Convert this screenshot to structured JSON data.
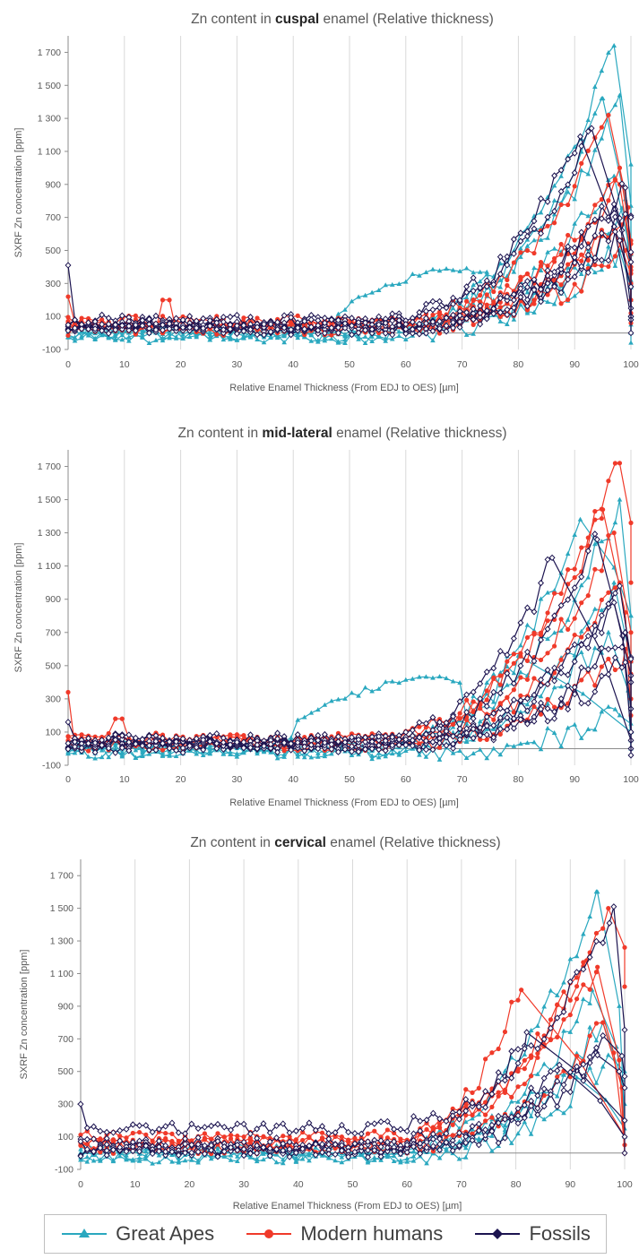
{
  "colors": {
    "great_apes": "#2aa8bf",
    "modern_humans": "#f03a2a",
    "fossils": "#1c1450",
    "grid": "#d9d9d9",
    "axis": "#8c8c8c"
  },
  "legend": [
    {
      "name": "Great Apes",
      "color": "#2aa8bf",
      "marker": "triangle"
    },
    {
      "name": "Modern humans",
      "color": "#f03a2a",
      "marker": "circle"
    },
    {
      "name": "Fossils",
      "color": "#1c1450",
      "marker": "diamond"
    }
  ],
  "chart_data": [
    {
      "type": "line",
      "title_prefix": "Zn content in ",
      "title_bold": "cuspal",
      "title_suffix": " enamel (Relative thickness)",
      "xlabel": "Relative Enamel Thickness (From EDJ to OES) [µm]",
      "ylabel": "SXRF Zn concentration [ppm]",
      "xlim": [
        0,
        100
      ],
      "ylim": [
        -100,
        1800
      ],
      "xticks": [
        0,
        10,
        20,
        30,
        40,
        50,
        60,
        70,
        80,
        90,
        100
      ],
      "yticks": [
        -100,
        100,
        300,
        500,
        700,
        900,
        1100,
        1300,
        1500,
        1700
      ],
      "ytick_labels": [
        "-100",
        "100",
        "300",
        "500",
        "700",
        "900",
        "1 100",
        "1 300",
        "1 500",
        "1 700"
      ],
      "grid": "vertical",
      "series": [
        {
          "group": "Great Apes",
          "peak_x": 97,
          "peak_y": 1740,
          "base": 0,
          "end_y": 300
        },
        {
          "group": "Great Apes",
          "peak_x": 95,
          "peak_y": 1420,
          "base": -20,
          "end_y": 200
        },
        {
          "group": "Great Apes",
          "peak_x": 98,
          "peak_y": 1440,
          "base": 10,
          "end_y": 100
        },
        {
          "group": "Great Apes",
          "peak_x": 97,
          "peak_y": 950,
          "base": 20,
          "end_y": 0
        },
        {
          "group": "Great Apes",
          "peak_x": 99,
          "peak_y": 700,
          "base": -30,
          "end_y": -60
        },
        {
          "group": "Great Apes",
          "peak_x": 98,
          "peak_y": 500,
          "base": 30,
          "end_y": 50,
          "hump": {
            "x0": 48,
            "x1": 75,
            "y": 380
          }
        },
        {
          "group": "Modern humans",
          "peak_x": 96,
          "peak_y": 1320,
          "base": 40,
          "end_y": 200,
          "spike": {
            "x": 17,
            "y": 200
          },
          "start_y": 220
        },
        {
          "group": "Modern humans",
          "peak_x": 98,
          "peak_y": 1000,
          "base": 50,
          "end_y": 120
        },
        {
          "group": "Modern humans",
          "peak_x": 98,
          "peak_y": 900,
          "base": 70,
          "end_y": 60
        },
        {
          "group": "Modern humans",
          "peak_x": 99,
          "peak_y": 700,
          "base": 30,
          "end_y": 380
        },
        {
          "group": "Modern humans",
          "peak_x": 97,
          "peak_y": 620,
          "base": 20,
          "end_y": 100
        },
        {
          "group": "Modern humans",
          "peak_x": 99,
          "peak_y": 500,
          "base": 60,
          "end_y": 300
        },
        {
          "group": "Fossils",
          "peak_x": 91,
          "peak_y": 1190,
          "base": 80,
          "end_y": 100,
          "start_y": 410
        },
        {
          "group": "Fossils",
          "peak_x": 93,
          "peak_y": 1240,
          "base": 60,
          "end_y": 150
        },
        {
          "group": "Fossils",
          "peak_x": 99,
          "peak_y": 880,
          "base": 40,
          "end_y": 100
        },
        {
          "group": "Fossils",
          "peak_x": 99,
          "peak_y": 720,
          "base": 30,
          "end_y": 700
        },
        {
          "group": "Fossils",
          "peak_x": 97,
          "peak_y": 780,
          "base": 20,
          "end_y": 80
        },
        {
          "group": "Fossils",
          "peak_x": 98,
          "peak_y": 560,
          "base": 50,
          "end_y": 0
        }
      ]
    },
    {
      "type": "line",
      "title_prefix": "Zn content in ",
      "title_bold": "mid-lateral",
      "title_suffix": " enamel (Relative thickness)",
      "xlabel": "Relative Enamel Thickness (From EDJ to OES) [µm]",
      "ylabel": "SXRF Zn concentration [ppm]",
      "xlim": [
        0,
        100
      ],
      "ylim": [
        -100,
        1800
      ],
      "xticks": [
        0,
        10,
        20,
        30,
        40,
        50,
        60,
        70,
        80,
        90,
        100
      ],
      "yticks": [
        -100,
        100,
        300,
        500,
        700,
        900,
        1100,
        1300,
        1500,
        1700
      ],
      "ytick_labels": [
        "-100",
        "100",
        "300",
        "500",
        "700",
        "900",
        "1 100",
        "1 300",
        "1 500",
        "1 700"
      ],
      "grid": "vertical",
      "series": [
        {
          "group": "Great Apes",
          "peak_x": 91,
          "peak_y": 1380,
          "base": 0,
          "end_y": 800
        },
        {
          "group": "Great Apes",
          "peak_x": 98,
          "peak_y": 1500,
          "base": 10,
          "end_y": 100
        },
        {
          "group": "Great Apes",
          "peak_x": 97,
          "peak_y": 1000,
          "base": -20,
          "end_y": 50
        },
        {
          "group": "Great Apes",
          "peak_x": 96,
          "peak_y": 700,
          "base": 20,
          "end_y": 0
        },
        {
          "group": "Great Apes",
          "peak_x": 98,
          "peak_y": 200,
          "base": -30,
          "end_y": 100
        },
        {
          "group": "Great Apes",
          "peak_x": 80,
          "peak_y": 560,
          "base": 30,
          "end_y": 100,
          "hump": {
            "x0": 40,
            "x1": 70,
            "y": 420
          }
        },
        {
          "group": "Modern humans",
          "peak_x": 98,
          "peak_y": 1720,
          "base": 40,
          "end_y": 1000,
          "start_y": 340
        },
        {
          "group": "Modern humans",
          "peak_x": 95,
          "peak_y": 1440,
          "base": 60,
          "end_y": 200,
          "spike": {
            "x": 9,
            "y": 180
          }
        },
        {
          "group": "Modern humans",
          "peak_x": 97,
          "peak_y": 1300,
          "base": 30,
          "end_y": 100
        },
        {
          "group": "Modern humans",
          "peak_x": 98,
          "peak_y": 1000,
          "base": 50,
          "end_y": 50
        },
        {
          "group": "Modern humans",
          "peak_x": 99,
          "peak_y": 600,
          "base": 20,
          "end_y": 300
        },
        {
          "group": "Fossils",
          "peak_x": 86,
          "peak_y": 1150,
          "base": 60,
          "end_y": 50,
          "start_y": 160
        },
        {
          "group": "Fossils",
          "peak_x": 94,
          "peak_y": 1260,
          "base": 40,
          "end_y": 100
        },
        {
          "group": "Fossils",
          "peak_x": 97,
          "peak_y": 880,
          "base": 30,
          "end_y": 0
        },
        {
          "group": "Fossils",
          "peak_x": 99,
          "peak_y": 700,
          "base": 20,
          "end_y": 400
        },
        {
          "group": "Fossils",
          "peak_x": 99,
          "peak_y": 520,
          "base": 50,
          "end_y": -40
        },
        {
          "group": "Fossils",
          "peak_x": 98,
          "peak_y": 980,
          "base": 10,
          "end_y": 100
        }
      ]
    },
    {
      "type": "line",
      "title_prefix": "Zn content in ",
      "title_bold": "cervical",
      "title_suffix": " enamel (Relative thickness)",
      "xlabel": "Relative Enamel Thickness (From EDJ to OES) [µm]",
      "ylabel": "SXRF Zn concentration [ppm]",
      "xlim": [
        0,
        100
      ],
      "ylim": [
        -100,
        1800
      ],
      "xticks": [
        0,
        10,
        20,
        30,
        40,
        50,
        60,
        70,
        80,
        90,
        100
      ],
      "yticks": [
        -100,
        100,
        300,
        500,
        700,
        900,
        1100,
        1300,
        1500,
        1700
      ],
      "ytick_labels": [
        "-100",
        "100",
        "300",
        "500",
        "700",
        "900",
        "1 100",
        "1 300",
        "1 500",
        "1 700"
      ],
      "grid": "vertical",
      "series": [
        {
          "group": "Great Apes",
          "peak_x": 95,
          "peak_y": 1600,
          "base": 0,
          "end_y": 200
        },
        {
          "group": "Great Apes",
          "peak_x": 94,
          "peak_y": 1000,
          "base": -20,
          "end_y": 300
        },
        {
          "group": "Great Apes",
          "peak_x": 96,
          "peak_y": 800,
          "base": 20,
          "end_y": 100
        },
        {
          "group": "Great Apes",
          "peak_x": 97,
          "peak_y": 600,
          "base": -30,
          "end_y": 400
        },
        {
          "group": "Great Apes",
          "peak_x": 90,
          "peak_y": 500,
          "base": 30,
          "end_y": 150
        },
        {
          "group": "Modern humans",
          "peak_x": 97,
          "peak_y": 1500,
          "base": 80,
          "end_y": 1020
        },
        {
          "group": "Modern humans",
          "peak_x": 95,
          "peak_y": 1140,
          "base": 60,
          "end_y": 0
        },
        {
          "group": "Modern humans",
          "peak_x": 81,
          "peak_y": 1000,
          "base": 40,
          "end_y": 100
        },
        {
          "group": "Modern humans",
          "peak_x": 93,
          "peak_y": 1180,
          "base": 100,
          "end_y": 50
        },
        {
          "group": "Modern humans",
          "peak_x": 96,
          "peak_y": 800,
          "base": 30,
          "end_y": 0
        },
        {
          "group": "Fossils",
          "peak_x": 98,
          "peak_y": 1510,
          "base": 150,
          "end_y": 0,
          "start_y": 300
        },
        {
          "group": "Fossils",
          "peak_x": 82,
          "peak_y": 740,
          "base": 60,
          "end_y": 200
        },
        {
          "group": "Fossils",
          "peak_x": 96,
          "peak_y": 720,
          "base": 40,
          "end_y": 470
        },
        {
          "group": "Fossils",
          "peak_x": 88,
          "peak_y": 540,
          "base": 20,
          "end_y": 100
        },
        {
          "group": "Fossils",
          "peak_x": 95,
          "peak_y": 600,
          "base": 10,
          "end_y": 400
        }
      ]
    }
  ]
}
